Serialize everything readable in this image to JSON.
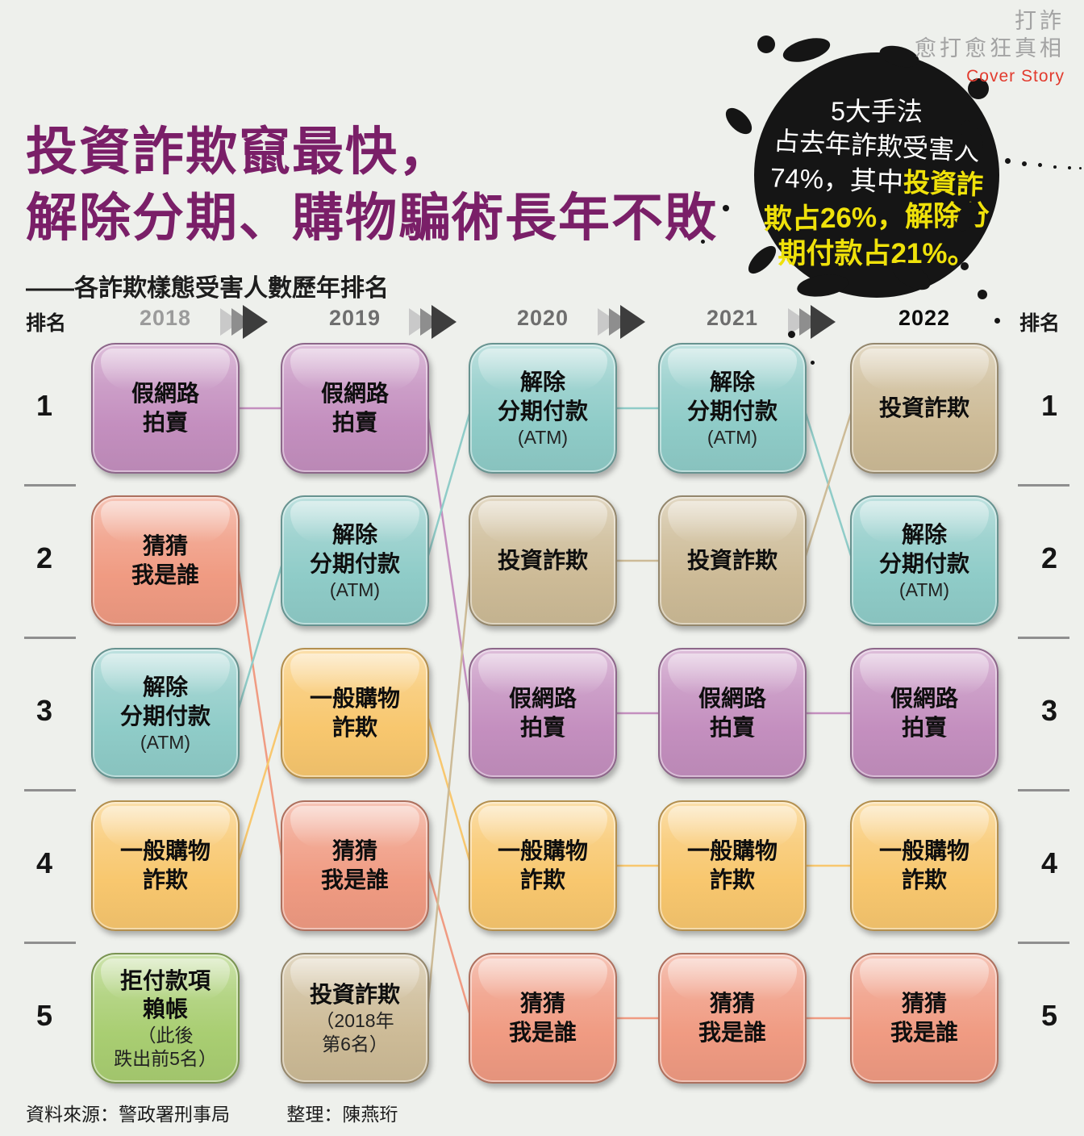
{
  "masthead": {
    "line1": "打詐",
    "line2": "愈打愈狂真相",
    "line3": "Cover Story"
  },
  "header": {
    "title_line1": "投資詐欺竄最快，",
    "title_line2": "解除分期、購物騙術長年不敗",
    "subtitle": "——各詐欺樣態受害人數歷年排名"
  },
  "callout": {
    "lines": [
      {
        "segs": [
          {
            "t": "5大手法",
            "c": "w"
          }
        ]
      },
      {
        "segs": [
          {
            "t": "占去年詐欺受害人",
            "c": "w"
          }
        ]
      },
      {
        "segs": [
          {
            "t": "74%，其中",
            "c": "w"
          },
          {
            "t": "投資詐",
            "c": "y"
          }
        ]
      },
      {
        "segs": [
          {
            "t": "欺占26%，解除分",
            "c": "y"
          }
        ]
      },
      {
        "segs": [
          {
            "t": "期付款占21%。",
            "c": "y"
          }
        ]
      }
    ]
  },
  "rank_header": "排名",
  "footer": {
    "source": "資料來源：警政署刑事局",
    "editor": "整理：陳燕珩"
  },
  "colors": {
    "title_purple": "#7a1f68",
    "cover_red": "#e23b2e",
    "highlight_yellow": "#efe10a",
    "ink_black": "#151515"
  },
  "chart_data": {
    "type": "bump",
    "title": "各詐欺樣態受害人數歷年排名",
    "years": [
      "2018",
      "2019",
      "2020",
      "2021",
      "2022"
    ],
    "ranks": [
      "1",
      "2",
      "3",
      "4",
      "5"
    ],
    "categories": {
      "auction": {
        "label": "假網路拍賣",
        "color": "#c48fbf"
      },
      "guess": {
        "label": "猜猜我是誰",
        "color": "#f09b82"
      },
      "atm": {
        "label": "解除分期付款(ATM)",
        "color": "#8fccc8"
      },
      "shopping": {
        "label": "一般購物詐欺",
        "color": "#f8c76e"
      },
      "investment": {
        "label": "投資詐欺",
        "color": "#cdbb97"
      },
      "refuse": {
        "label": "拒付款項賴帳",
        "color": "#a9ce72"
      }
    },
    "columns": [
      {
        "year": "2018",
        "cells": [
          {
            "rank": 1,
            "cat": "auction",
            "main": [
              "假網路",
              "拍賣"
            ],
            "sub": []
          },
          {
            "rank": 2,
            "cat": "guess",
            "main": [
              "猜猜",
              "我是誰"
            ],
            "sub": []
          },
          {
            "rank": 3,
            "cat": "atm",
            "main": [
              "解除",
              "分期付款"
            ],
            "sub": [
              "(ATM)"
            ]
          },
          {
            "rank": 4,
            "cat": "shopping",
            "main": [
              "一般購物",
              "詐欺"
            ],
            "sub": []
          },
          {
            "rank": 5,
            "cat": "refuse",
            "main": [
              "拒付款項",
              "賴帳"
            ],
            "sub": [
              "（此後",
              "跌出前5名）"
            ]
          }
        ]
      },
      {
        "year": "2019",
        "cells": [
          {
            "rank": 1,
            "cat": "auction",
            "main": [
              "假網路",
              "拍賣"
            ],
            "sub": []
          },
          {
            "rank": 2,
            "cat": "atm",
            "main": [
              "解除",
              "分期付款"
            ],
            "sub": [
              "(ATM)"
            ]
          },
          {
            "rank": 3,
            "cat": "shopping",
            "main": [
              "一般購物",
              "詐欺"
            ],
            "sub": []
          },
          {
            "rank": 4,
            "cat": "guess",
            "main": [
              "猜猜",
              "我是誰"
            ],
            "sub": []
          },
          {
            "rank": 5,
            "cat": "investment",
            "main": [
              "投資詐欺"
            ],
            "sub": [
              "（2018年",
              "第6名）"
            ]
          }
        ]
      },
      {
        "year": "2020",
        "cells": [
          {
            "rank": 1,
            "cat": "atm",
            "main": [
              "解除",
              "分期付款"
            ],
            "sub": [
              "(ATM)"
            ]
          },
          {
            "rank": 2,
            "cat": "investment",
            "main": [
              "投資詐欺"
            ],
            "sub": []
          },
          {
            "rank": 3,
            "cat": "auction",
            "main": [
              "假網路",
              "拍賣"
            ],
            "sub": []
          },
          {
            "rank": 4,
            "cat": "shopping",
            "main": [
              "一般購物",
              "詐欺"
            ],
            "sub": []
          },
          {
            "rank": 5,
            "cat": "guess",
            "main": [
              "猜猜",
              "我是誰"
            ],
            "sub": []
          }
        ]
      },
      {
        "year": "2021",
        "cells": [
          {
            "rank": 1,
            "cat": "atm",
            "main": [
              "解除",
              "分期付款"
            ],
            "sub": [
              "(ATM)"
            ]
          },
          {
            "rank": 2,
            "cat": "investment",
            "main": [
              "投資詐欺"
            ],
            "sub": []
          },
          {
            "rank": 3,
            "cat": "auction",
            "main": [
              "假網路",
              "拍賣"
            ],
            "sub": []
          },
          {
            "rank": 4,
            "cat": "shopping",
            "main": [
              "一般購物",
              "詐欺"
            ],
            "sub": []
          },
          {
            "rank": 5,
            "cat": "guess",
            "main": [
              "猜猜",
              "我是誰"
            ],
            "sub": []
          }
        ]
      },
      {
        "year": "2022",
        "cells": [
          {
            "rank": 1,
            "cat": "investment",
            "main": [
              "投資詐欺"
            ],
            "sub": []
          },
          {
            "rank": 2,
            "cat": "atm",
            "main": [
              "解除",
              "分期付款"
            ],
            "sub": [
              "(ATM)"
            ]
          },
          {
            "rank": 3,
            "cat": "auction",
            "main": [
              "假網路",
              "拍賣"
            ],
            "sub": []
          },
          {
            "rank": 4,
            "cat": "shopping",
            "main": [
              "一般購物",
              "詐欺"
            ],
            "sub": []
          },
          {
            "rank": 5,
            "cat": "guess",
            "main": [
              "猜猜",
              "我是誰"
            ],
            "sub": []
          }
        ]
      }
    ],
    "links": [
      {
        "from": {
          "col": 0,
          "rank": 1
        },
        "to": {
          "col": 1,
          "rank": 1
        },
        "cat": "auction"
      },
      {
        "from": {
          "col": 0,
          "rank": 2
        },
        "to": {
          "col": 1,
          "rank": 4
        },
        "cat": "guess"
      },
      {
        "from": {
          "col": 0,
          "rank": 3
        },
        "to": {
          "col": 1,
          "rank": 2
        },
        "cat": "atm"
      },
      {
        "from": {
          "col": 0,
          "rank": 4
        },
        "to": {
          "col": 1,
          "rank": 3
        },
        "cat": "shopping"
      },
      {
        "from": {
          "col": 1,
          "rank": 1
        },
        "to": {
          "col": 2,
          "rank": 3
        },
        "cat": "auction"
      },
      {
        "from": {
          "col": 1,
          "rank": 2
        },
        "to": {
          "col": 2,
          "rank": 1
        },
        "cat": "atm"
      },
      {
        "from": {
          "col": 1,
          "rank": 3
        },
        "to": {
          "col": 2,
          "rank": 4
        },
        "cat": "shopping"
      },
      {
        "from": {
          "col": 1,
          "rank": 4
        },
        "to": {
          "col": 2,
          "rank": 5
        },
        "cat": "guess"
      },
      {
        "from": {
          "col": 1,
          "rank": 5
        },
        "to": {
          "col": 2,
          "rank": 2
        },
        "cat": "investment"
      },
      {
        "from": {
          "col": 2,
          "rank": 1
        },
        "to": {
          "col": 3,
          "rank": 1
        },
        "cat": "atm"
      },
      {
        "from": {
          "col": 2,
          "rank": 2
        },
        "to": {
          "col": 3,
          "rank": 2
        },
        "cat": "investment"
      },
      {
        "from": {
          "col": 2,
          "rank": 3
        },
        "to": {
          "col": 3,
          "rank": 3
        },
        "cat": "auction"
      },
      {
        "from": {
          "col": 2,
          "rank": 4
        },
        "to": {
          "col": 3,
          "rank": 4
        },
        "cat": "shopping"
      },
      {
        "from": {
          "col": 2,
          "rank": 5
        },
        "to": {
          "col": 3,
          "rank": 5
        },
        "cat": "guess"
      },
      {
        "from": {
          "col": 3,
          "rank": 1
        },
        "to": {
          "col": 4,
          "rank": 2
        },
        "cat": "atm"
      },
      {
        "from": {
          "col": 3,
          "rank": 2
        },
        "to": {
          "col": 4,
          "rank": 1
        },
        "cat": "investment"
      },
      {
        "from": {
          "col": 3,
          "rank": 3
        },
        "to": {
          "col": 4,
          "rank": 3
        },
        "cat": "auction"
      },
      {
        "from": {
          "col": 3,
          "rank": 4
        },
        "to": {
          "col": 4,
          "rank": 4
        },
        "cat": "shopping"
      },
      {
        "from": {
          "col": 3,
          "rank": 5
        },
        "to": {
          "col": 4,
          "rank": 5
        },
        "cat": "guess"
      }
    ]
  }
}
